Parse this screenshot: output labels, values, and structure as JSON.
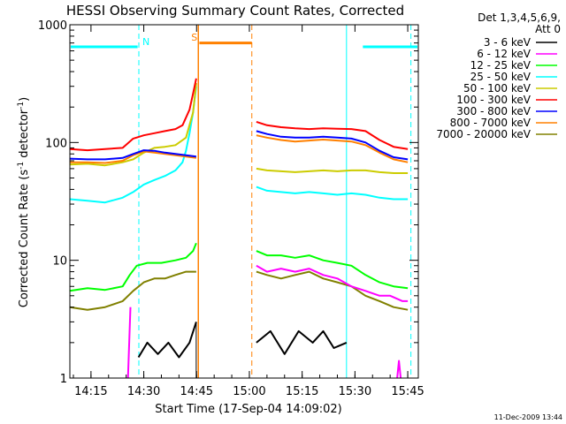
{
  "chart_data": {
    "type": "line",
    "title": "HESSI Observing Summary Count Rates, Corrected",
    "xlabel": "Start Time (17-Sep-04 14:09:02)",
    "ylabel": "Corrected Count Rate (s⁻¹ detector⁻¹)",
    "ylabel_main": "Corrected Count Rate (s",
    "ylabel_mid": " detector",
    "ylabel_end": ")",
    "ylabel_sup": "-1",
    "yscale": "log",
    "ylim": [
      1,
      1000
    ],
    "xlim_minutes": [
      0,
      99
    ],
    "xticks": [
      {
        "label": "14:15",
        "minute": 6
      },
      {
        "label": "14:30",
        "minute": 21
      },
      {
        "label": "14:45",
        "minute": 36
      },
      {
        "label": "15:00",
        "minute": 51
      },
      {
        "label": "15:15",
        "minute": 66
      },
      {
        "label": "15:30",
        "minute": 81
      },
      {
        "label": "15:45",
        "minute": 96
      }
    ],
    "yticks": [
      {
        "label": "1",
        "value": 1
      },
      {
        "label": "10",
        "value": 10
      },
      {
        "label": "100",
        "value": 100
      },
      {
        "label": "1000",
        "value": 1000
      }
    ],
    "legend_header": [
      "Det 1,3,4,5,6,9,",
      "Att 0"
    ],
    "legend_position": "right",
    "series": [
      {
        "name": "3 - 6 keV",
        "color": "#000000",
        "segments": [
          {
            "x": [
              19.5,
              22,
              25,
              28,
              31,
              34,
              35.9
            ],
            "y": [
              1.5,
              2,
              1.6,
              2,
              1.5,
              2,
              3
            ]
          },
          {
            "x": [
              53,
              57,
              61,
              65,
              69,
              72,
              75,
              78.6
            ],
            "y": [
              2,
              2.5,
              1.6,
              2.5,
              2,
              2.5,
              1.8,
              2
            ]
          }
        ]
      },
      {
        "name": "6 - 12 keV",
        "color": "#ff00ff",
        "segments": [
          {
            "x": [
              16.5,
              17.2
            ],
            "y": [
              1,
              4
            ]
          },
          {
            "x": [
              53,
              56,
              60,
              64,
              68,
              72,
              76,
              80,
              84,
              88,
              91,
              94.5,
              96
            ],
            "y": [
              9,
              8,
              8.5,
              8,
              8.5,
              7.5,
              7,
              6,
              5.5,
              5,
              5,
              4.5,
              4.5
            ]
          },
          {
            "x": [
              93,
              93.5,
              94
            ],
            "y": [
              1,
              1.4,
              1
            ]
          }
        ]
      },
      {
        "name": "12 - 25 keV",
        "color": "#00ff00",
        "segments": [
          {
            "x": [
              0,
              5,
              10,
              15,
              17,
              19,
              22,
              26,
              30,
              33,
              35,
              35.9
            ],
            "y": [
              5.5,
              5.8,
              5.6,
              6,
              7.5,
              9,
              9.5,
              9.5,
              10,
              10.5,
              12,
              14
            ]
          },
          {
            "x": [
              53,
              56,
              60,
              64,
              68,
              72,
              76,
              80,
              84,
              88,
              92,
              96
            ],
            "y": [
              12,
              11,
              11,
              10.5,
              11,
              10,
              9.5,
              9,
              7.5,
              6.5,
              6,
              5.8
            ]
          }
        ]
      },
      {
        "name": "25 - 50 keV",
        "color": "#00ffff",
        "segments": [
          {
            "x": [
              0,
              5,
              10,
              15,
              18,
              21,
              24,
              27,
              30,
              32,
              33,
              34,
              35,
              35.9
            ],
            "y": [
              33,
              32,
              31,
              34,
              38,
              44,
              48,
              52,
              58,
              68,
              85,
              120,
              180,
              300
            ]
          },
          {
            "x": [
              53,
              56,
              60,
              64,
              68,
              72,
              76,
              80,
              84,
              88,
              92,
              96
            ],
            "y": [
              42,
              39,
              38,
              37,
              38,
              37,
              36,
              37,
              36,
              34,
              33,
              33
            ]
          }
        ]
      },
      {
        "name": "50 - 100 keV",
        "color": "#cccc00",
        "segments": [
          {
            "x": [
              0,
              5,
              10,
              15,
              18,
              21,
              24,
              27,
              30,
              33,
              35,
              35.9
            ],
            "y": [
              65,
              66,
              64,
              68,
              72,
              82,
              90,
              92,
              95,
              110,
              180,
              320
            ]
          },
          {
            "x": [
              53,
              56,
              60,
              64,
              68,
              72,
              76,
              80,
              84,
              88,
              92,
              96
            ],
            "y": [
              60,
              58,
              57,
              56,
              57,
              58,
              57,
              58,
              58,
              56,
              55,
              55
            ]
          }
        ]
      },
      {
        "name": "100 - 300 keV",
        "color": "#ff0000",
        "segments": [
          {
            "x": [
              0,
              5,
              10,
              15,
              18,
              21,
              24,
              27,
              30,
              32,
              34,
              35,
              35.9
            ],
            "y": [
              88,
              86,
              88,
              90,
              108,
              115,
              120,
              125,
              130,
              140,
              190,
              260,
              350
            ]
          },
          {
            "x": [
              53,
              56,
              60,
              64,
              68,
              72,
              76,
              80,
              84,
              88,
              92,
              96
            ],
            "y": [
              150,
              140,
              135,
              132,
              130,
              132,
              131,
              130,
              125,
              105,
              92,
              88
            ]
          }
        ]
      },
      {
        "name": "300 - 800 keV",
        "color": "#0000ff",
        "segments": [
          {
            "x": [
              0,
              5,
              10,
              15,
              18,
              21,
              24,
              27,
              30,
              33,
              35.9
            ],
            "y": [
              73,
              72,
              72,
              74,
              80,
              86,
              85,
              82,
              80,
              78,
              76
            ]
          },
          {
            "x": [
              53,
              56,
              60,
              64,
              68,
              72,
              76,
              80,
              84,
              88,
              92,
              96
            ],
            "y": [
              125,
              118,
              112,
              110,
              110,
              112,
              110,
              108,
              100,
              85,
              75,
              72
            ]
          }
        ]
      },
      {
        "name": "800 - 7000 keV",
        "color": "#ff8000",
        "segments": [
          {
            "x": [
              0,
              5,
              10,
              15,
              18,
              21,
              24,
              27,
              30,
              33,
              35.9
            ],
            "y": [
              68,
              68,
              67,
              70,
              78,
              84,
              82,
              80,
              78,
              76,
              74
            ]
          },
          {
            "x": [
              53,
              56,
              60,
              64,
              68,
              72,
              76,
              80,
              84,
              88,
              92,
              96
            ],
            "y": [
              115,
              110,
              105,
              102,
              104,
              106,
              104,
              102,
              95,
              82,
              72,
              68
            ]
          }
        ]
      },
      {
        "name": "7000 - 20000 keV",
        "color": "#808000",
        "segments": [
          {
            "x": [
              0,
              5,
              10,
              15,
              18,
              21,
              24,
              27,
              30,
              33,
              35.9
            ],
            "y": [
              4,
              3.8,
              4,
              4.5,
              5.5,
              6.5,
              7,
              7,
              7.5,
              8,
              8
            ]
          },
          {
            "x": [
              53,
              56,
              60,
              64,
              68,
              72,
              76,
              80,
              84,
              88,
              92,
              96
            ],
            "y": [
              8,
              7.5,
              7,
              7.5,
              8,
              7,
              6.5,
              6,
              5,
              4.5,
              4,
              3.8
            ]
          }
        ]
      }
    ],
    "annotations": {
      "night_bars": {
        "color": "#00ffff",
        "spans": [
          [
            0,
            19.5
          ],
          [
            83,
            99
          ]
        ],
        "value": 650
      },
      "night_lines": {
        "color": "#00ffff",
        "solid": [
          78.6
        ],
        "dashed": [
          19.6,
          96.9
        ]
      },
      "night_label": "N",
      "saa_bar": {
        "color": "#ff8000",
        "span": [
          36.8,
          51.7
        ],
        "value": 700
      },
      "saa_lines": {
        "color": "#ff8000",
        "solid": [
          36.5
        ],
        "dashed": [
          51.7
        ]
      },
      "saa_label": "S",
      "flare_line": {
        "color": "#000000",
        "minute": 35.9
      }
    }
  },
  "footer": {
    "date_stamp": "11-Dec-2009 13:44"
  }
}
